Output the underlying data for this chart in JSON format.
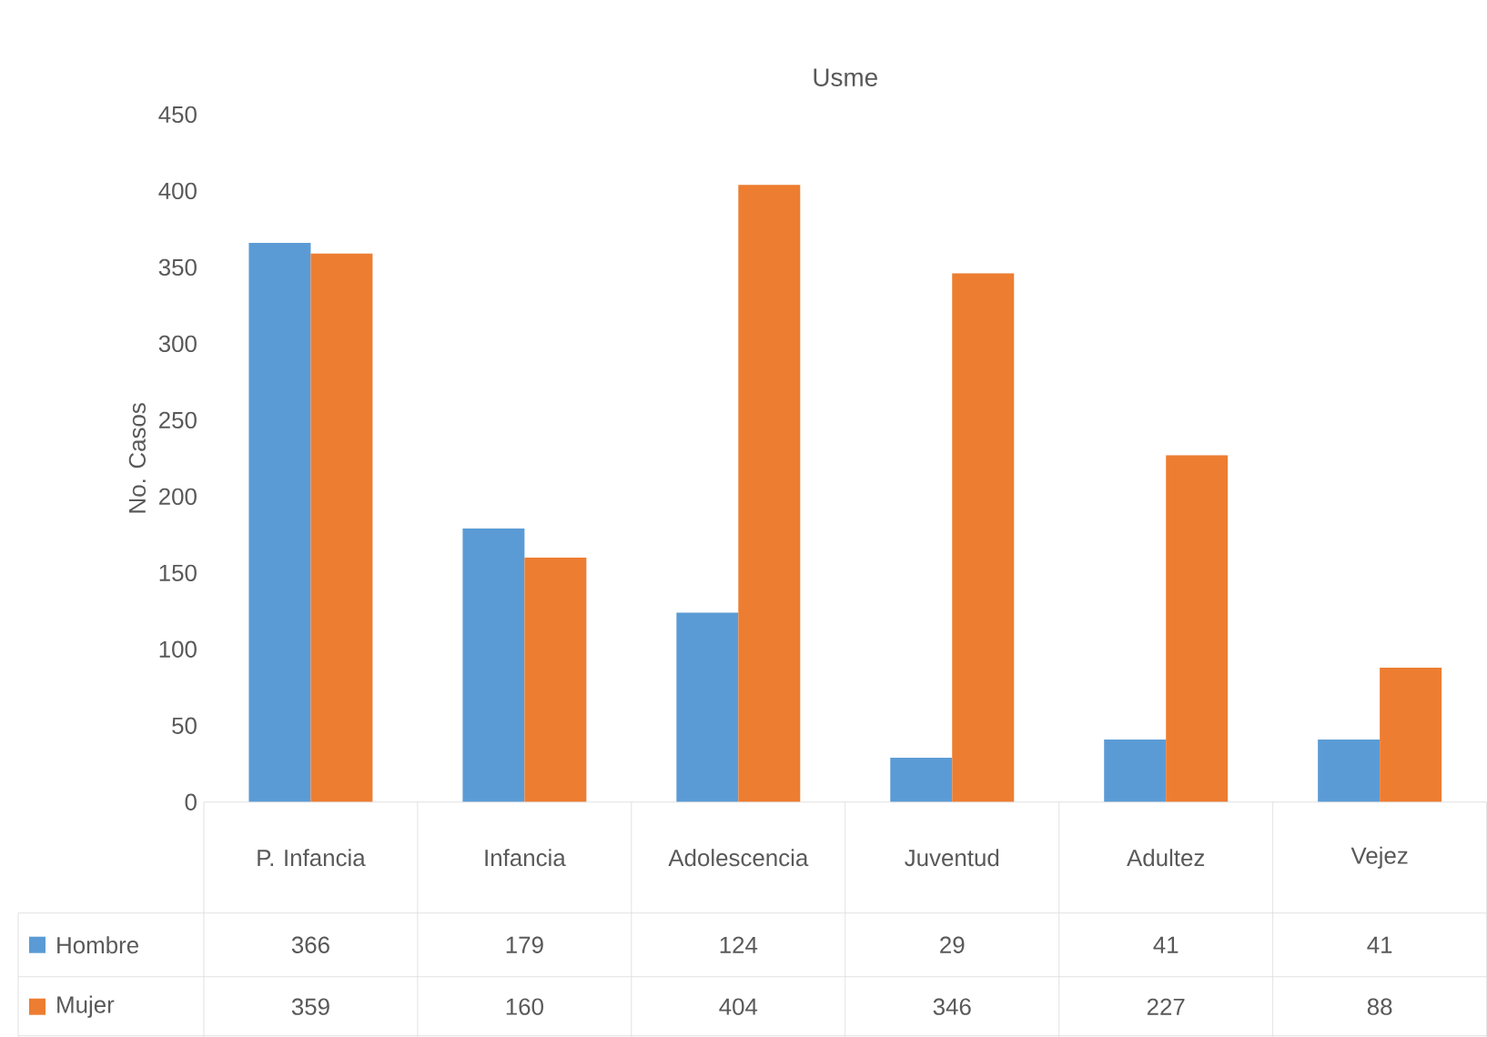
{
  "chart_data": {
    "type": "bar",
    "title": "Usme",
    "ylabel": "No. Casos",
    "categories": [
      "P. Infancia",
      "Infancia",
      "Adolescencia",
      "Juventud",
      "Adultez",
      "Vejez"
    ],
    "series": [
      {
        "name": "Hombre",
        "color": "#5b9bd5",
        "values": [
          366,
          179,
          124,
          29,
          41,
          41
        ]
      },
      {
        "name": "Mujer",
        "color": "#ed7d31",
        "values": [
          359,
          160,
          404,
          346,
          227,
          88
        ]
      }
    ],
    "ylim": [
      0,
      450
    ],
    "yticks": [
      0,
      50,
      100,
      150,
      200,
      250,
      300,
      350,
      400,
      450
    ],
    "grid": false,
    "legend": "bottom",
    "data_labels": true
  }
}
